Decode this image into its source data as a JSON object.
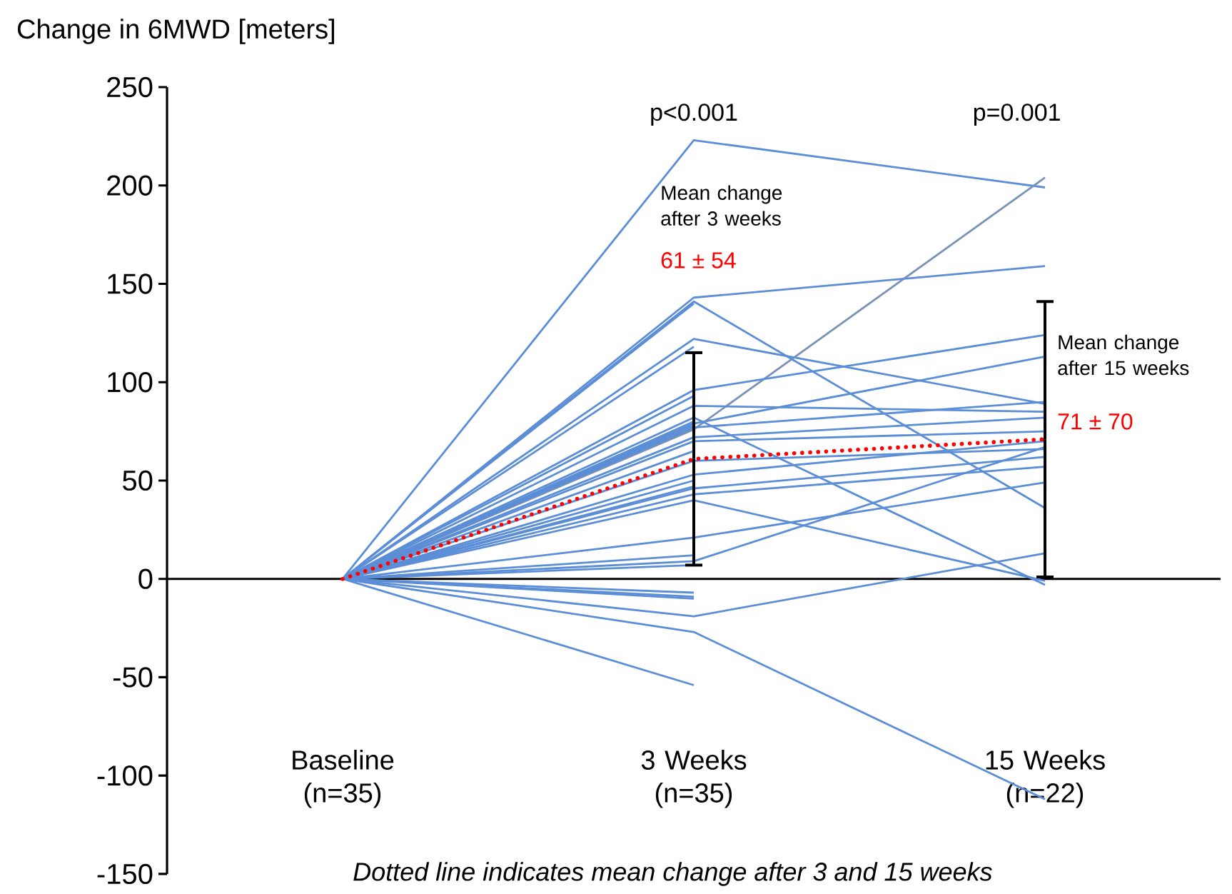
{
  "chart_data": {
    "type": "line",
    "ylabel": "Change in 6MWD [meters]",
    "categories": [
      "Baseline (n=35)",
      "3 Weeks (n=35)",
      "15 Weeks (n=22)"
    ],
    "ylim": [
      -150,
      250
    ],
    "yticks": [
      -150,
      -100,
      -50,
      0,
      50,
      100,
      150,
      200,
      250
    ],
    "annotations": [
      "p<0.001",
      "p=0.001",
      "Mean change after 3 weeks",
      "Mean change after 15 weeks",
      "Dotted line indicates mean change after 3 and 15 weeks",
      "61 ± 54",
      "71 ± 70"
    ],
    "series": [
      {
        "color": "#5b8ed6",
        "values": [
          0,
          223,
          199
        ]
      },
      {
        "color": "#7a92b8",
        "values": [
          0,
          76,
          204
        ]
      },
      {
        "color": "#5b8ed6",
        "values": [
          0,
          143,
          159
        ]
      },
      {
        "color": "#5b8ed6",
        "values": [
          0,
          141,
          36
        ]
      },
      {
        "color": "#5b8ed6",
        "values": [
          0,
          122,
          89
        ]
      },
      {
        "color": "#5b8ed6",
        "values": [
          0,
          96,
          124
        ]
      },
      {
        "color": "#5b8ed6",
        "values": [
          0,
          82,
          -3
        ]
      },
      {
        "color": "#5b8ed6",
        "values": [
          0,
          79,
          113
        ]
      },
      {
        "color": "#5b8ed6",
        "values": [
          0,
          77,
          90
        ]
      },
      {
        "color": "#5b8ed6",
        "values": [
          0,
          72,
          82
        ]
      },
      {
        "color": "#5b8ed6",
        "values": [
          0,
          70,
          75
        ]
      },
      {
        "color": "#5b8ed6",
        "values": [
          0,
          53,
          70
        ]
      },
      {
        "color": "#5b8ed6",
        "values": [
          0,
          46,
          62
        ]
      },
      {
        "color": "#5b8ed6",
        "values": [
          0,
          43,
          57
        ]
      },
      {
        "color": "#5b8ed6",
        "values": [
          0,
          40,
          -1
        ]
      },
      {
        "color": "#5b8ed6",
        "values": [
          0,
          21,
          49
        ]
      },
      {
        "color": "#5b8ed6",
        "values": [
          0,
          9,
          67
        ]
      },
      {
        "color": "#5b8ed6",
        "values": [
          0,
          -19,
          13
        ]
      },
      {
        "color": "#5b8ed6",
        "values": [
          0,
          -27,
          -112
        ]
      },
      {
        "color": "#5b8ed6",
        "values": [
          0,
          60,
          66
        ]
      },
      {
        "color": "#5b8ed6",
        "values": [
          0,
          88,
          85
        ]
      },
      {
        "color": "#5b8ed6",
        "values": [
          0,
          140,
          null
        ]
      },
      {
        "color": "#5b8ed6",
        "values": [
          0,
          118,
          null
        ]
      },
      {
        "color": "#5b8ed6",
        "values": [
          0,
          93,
          null
        ]
      },
      {
        "color": "#5b8ed6",
        "values": [
          0,
          80,
          null
        ]
      },
      {
        "color": "#5b8ed6",
        "values": [
          0,
          78,
          null
        ]
      },
      {
        "color": "#5b8ed6",
        "values": [
          0,
          65,
          null
        ]
      },
      {
        "color": "#5b8ed6",
        "values": [
          0,
          50,
          null
        ]
      },
      {
        "color": "#5b8ed6",
        "values": [
          0,
          47,
          null
        ]
      },
      {
        "color": "#5b8ed6",
        "values": [
          0,
          12,
          null
        ]
      },
      {
        "color": "#5b8ed6",
        "values": [
          0,
          7,
          null
        ]
      },
      {
        "color": "#5b8ed6",
        "values": [
          0,
          -7,
          null
        ]
      },
      {
        "color": "#5b8ed6",
        "values": [
          0,
          -9,
          null
        ]
      },
      {
        "color": "#5b8ed6",
        "values": [
          0,
          -10,
          null
        ]
      },
      {
        "color": "#5b8ed6",
        "values": [
          0,
          -54,
          null
        ]
      },
      {
        "color": "#ff0000",
        "line_style": "dotted",
        "values": [
          0,
          61,
          71
        ],
        "errors": [
          null,
          54,
          70
        ]
      }
    ]
  }
}
